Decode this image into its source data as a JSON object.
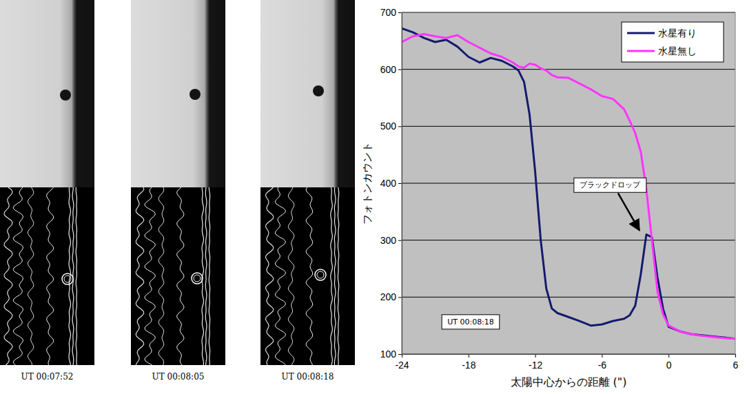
{
  "chart_data": {
    "type": "line",
    "x_label": "太陽中心からの距離 (\")",
    "y_label": "フォトンカウント",
    "x": [
      -24,
      -23,
      -22,
      -21,
      -20,
      -19,
      -18,
      -17,
      -16,
      -15,
      -14,
      -13.5,
      -13,
      -12.5,
      -12,
      -11.5,
      -11,
      -10.5,
      -10,
      -9,
      -8,
      -7,
      -6,
      -5,
      -4,
      -3.5,
      -3,
      -2.5,
      -2,
      -1.5,
      -1,
      -0.5,
      0,
      1,
      2,
      3,
      4,
      5,
      6
    ],
    "series": [
      {
        "name": "水星有り",
        "color": "#141a6e",
        "values": [
          672,
          665,
          655,
          648,
          652,
          640,
          622,
          612,
          620,
          615,
          605,
          598,
          578,
          520,
          420,
          300,
          215,
          180,
          172,
          165,
          158,
          150,
          152,
          158,
          162,
          168,
          185,
          240,
          310,
          305,
          235,
          180,
          148,
          140,
          135,
          133,
          131,
          129,
          127
        ]
      },
      {
        "name": "水星無し",
        "color": "#ff33ff",
        "values": [
          648,
          658,
          662,
          658,
          655,
          660,
          648,
          638,
          628,
          622,
          612,
          605,
          603,
          610,
          608,
          602,
          598,
          590,
          586,
          585,
          575,
          565,
          553,
          548,
          530,
          510,
          488,
          455,
          390,
          300,
          210,
          170,
          150,
          140,
          135,
          132,
          130,
          128,
          127
        ]
      }
    ],
    "xlim": [
      -24,
      6
    ],
    "xticks": [
      -24,
      -18,
      -12,
      -6,
      0,
      6
    ],
    "ylim": [
      100,
      700
    ],
    "yticks": [
      100,
      200,
      300,
      400,
      500,
      600,
      700
    ],
    "grid": true,
    "legend": "upper right",
    "annotations": [
      {
        "text": "ブラックドロップ",
        "x": -2.5,
        "y": 310
      },
      {
        "text": "UT 00:08:18"
      }
    ]
  },
  "images": {
    "labels": [
      "UT 00:07:52",
      "UT 00:08:05",
      "UT 00:08:18"
    ]
  }
}
